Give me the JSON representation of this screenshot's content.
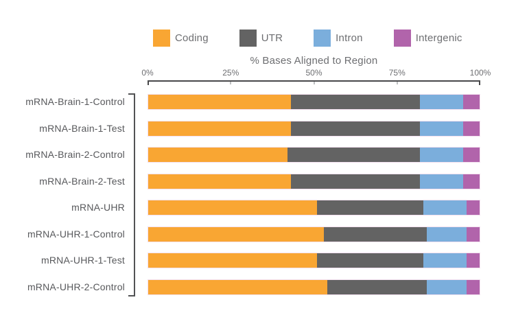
{
  "chart_data": {
    "type": "bar",
    "orientation": "horizontal",
    "stacked": true,
    "title": "% Bases Aligned to Region",
    "legend_position": "top",
    "grid": false,
    "xlim": [
      0,
      100
    ],
    "x_ticks": [
      "0%",
      "25%",
      "50%",
      "75%",
      "100%"
    ],
    "categories": [
      "mRNA-Brain-1-Control",
      "mRNA-Brain-1-Test",
      "mRNA-Brain-2-Control",
      "mRNA-Brain-2-Test",
      "mRNA-UHR",
      "mRNA-UHR-1-Control",
      "mRNA-UHR-1-Test",
      "mRNA-UHR-2-Control"
    ],
    "series": [
      {
        "name": "Coding",
        "color": "#F9A633",
        "values": [
          43,
          43,
          42,
          43,
          51,
          53,
          51,
          54
        ]
      },
      {
        "name": "UTR",
        "color": "#636363",
        "values": [
          39,
          39,
          40,
          39,
          32,
          31,
          32,
          30
        ]
      },
      {
        "name": "Intron",
        "color": "#7BAEDC",
        "values": [
          13,
          13,
          13,
          13,
          13,
          12,
          13,
          12
        ]
      },
      {
        "name": "Intergenic",
        "color": "#B164AB",
        "values": [
          5,
          5,
          5,
          5,
          4,
          4,
          4,
          4
        ]
      }
    ]
  },
  "colors": {
    "axis_line": "#48484a",
    "minor_tick": "#bdbfc1",
    "bracket": "#515254",
    "label_text": "#57585b",
    "axis_text": "#6d6e71"
  }
}
